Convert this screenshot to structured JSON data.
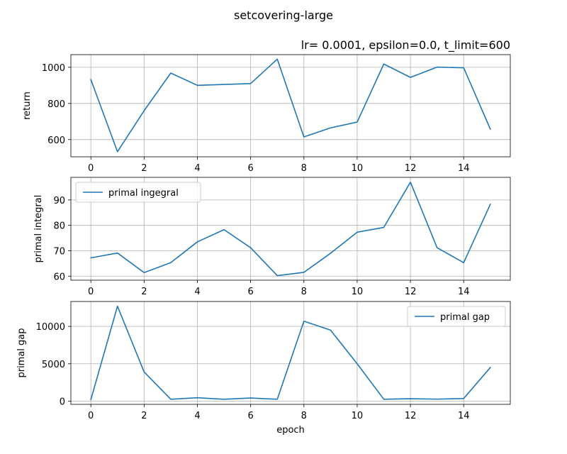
{
  "figure": {
    "suptitle": "setcovering-large"
  },
  "chart_data": [
    {
      "type": "line",
      "title": "lr= 0.0001, epsilon=0.0, t_limit=600",
      "xlabel": "",
      "ylabel": "return",
      "x": [
        0,
        1,
        2,
        3,
        4,
        5,
        6,
        7,
        8,
        9,
        10,
        11,
        12,
        13,
        14,
        15
      ],
      "series": [
        {
          "name": "",
          "values": [
            932,
            533,
            760,
            968,
            900,
            905,
            910,
            1045,
            615,
            665,
            697,
            1018,
            944,
            1001,
            997,
            658
          ],
          "color": "#1f77b4"
        }
      ],
      "xlim": [
        -0.75,
        15.75
      ],
      "ylim": [
        505,
        1070
      ],
      "xticks": [
        0,
        2,
        4,
        6,
        8,
        10,
        12,
        14
      ],
      "yticks": [
        600,
        800,
        1000
      ],
      "grid": true,
      "legend": null
    },
    {
      "type": "line",
      "title": "",
      "xlabel": "",
      "ylabel": "primal integral",
      "x": [
        0,
        1,
        2,
        3,
        4,
        5,
        6,
        7,
        8,
        9,
        10,
        11,
        12,
        13,
        14,
        15
      ],
      "series": [
        {
          "name": "primal ingegral",
          "values": [
            67.2,
            69.1,
            61.4,
            65.3,
            73.5,
            78.3,
            71.2,
            60.2,
            61.5,
            69.0,
            77.3,
            79.2,
            97.0,
            71.2,
            65.3,
            88.3
          ],
          "color": "#1f77b4"
        }
      ],
      "xlim": [
        -0.75,
        15.75
      ],
      "ylim": [
        58.4,
        98.9
      ],
      "xticks": [
        0,
        2,
        4,
        6,
        8,
        10,
        12,
        14
      ],
      "yticks": [
        60,
        70,
        80,
        90
      ],
      "grid": true,
      "legend": "upper left"
    },
    {
      "type": "line",
      "title": "",
      "xlabel": "epoch",
      "ylabel": "primal gap",
      "x": [
        0,
        1,
        2,
        3,
        4,
        5,
        6,
        7,
        8,
        9,
        10,
        11,
        12,
        13,
        14,
        15
      ],
      "series": [
        {
          "name": "primal gap",
          "values": [
            200,
            12700,
            3900,
            250,
            450,
            250,
            420,
            250,
            10700,
            9500,
            5000,
            250,
            320,
            270,
            350,
            4500
          ],
          "color": "#1f77b4"
        }
      ],
      "xlim": [
        -0.75,
        15.75
      ],
      "ylim": [
        -430,
        13330
      ],
      "xticks": [
        0,
        2,
        4,
        6,
        8,
        10,
        12,
        14
      ],
      "yticks": [
        0,
        5000,
        10000
      ],
      "grid": true,
      "legend": "upper right"
    }
  ]
}
